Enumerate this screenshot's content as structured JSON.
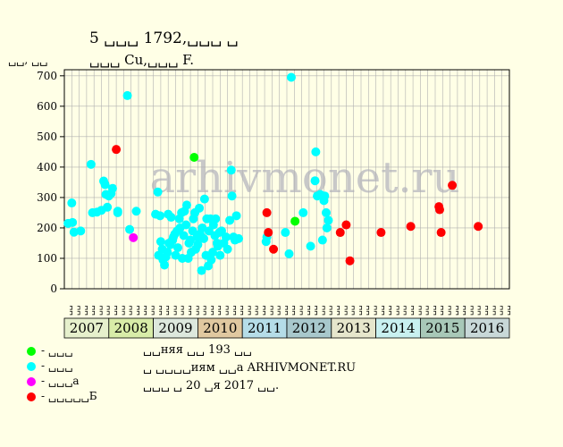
{
  "header": {
    "line1": "5 ␣␣␣ 1792,␣␣␣ ␣",
    "line2": "␣␣␣ Cu,␣␣␣ F."
  },
  "notes": [
    "␣␣няя ␣␣ 193 ␣␣",
    "␣ ␣␣␣␣иям ␣␣а ARHIVMONET.RU",
    "␣␣␣ ␣ 20 ␣я 2017 ␣␣."
  ],
  "watermark": "arhivmonet.ru",
  "chart_data": {
    "type": "scatter",
    "ylabel": "␣␣, ␣␣",
    "ylim": [
      0,
      720
    ],
    "yticks": [
      0,
      100,
      200,
      300,
      400,
      500,
      600,
      700
    ],
    "grid": true,
    "years": [
      {
        "label": "2007",
        "color": "#e6f0cc"
      },
      {
        "label": "2008",
        "color": "#d8eca8"
      },
      {
        "label": "2009",
        "color": "#dde8dd"
      },
      {
        "label": "2010",
        "color": "#e0c8a0"
      },
      {
        "label": "2011",
        "color": "#b5dde8"
      },
      {
        "label": "2012",
        "color": "#a8c8cc"
      },
      {
        "label": "2013",
        "color": "#e6e6cc"
      },
      {
        "label": "2014",
        "color": "#c8f0f0"
      },
      {
        "label": "2015",
        "color": "#a8c8b8"
      },
      {
        "label": "2016",
        "color": "#c8d8d8"
      }
    ],
    "months": [
      "␣␣",
      "␣␣",
      "␣␣",
      "␣␣",
      "␣␣",
      "␣␣",
      "␣␣",
      "␣␣",
      "␣␣",
      "␣␣",
      "␣␣",
      "␣␣",
      "␣␣",
      "␣␣",
      "␣␣",
      "␣␣",
      "␣␣",
      "␣␣",
      "␣␣",
      "␣␣",
      "␣␣",
      "␣␣",
      "␣␣",
      "␣␣",
      "␣␣",
      "␣␣",
      "␣␣",
      "␣␣",
      "␣␣",
      "␣␣",
      "␣␣",
      "␣␣",
      "␣␣",
      "␣␣",
      "␣␣",
      "␣␣",
      "␣␣",
      "␣␣",
      "␣␣",
      "␣␣",
      "␣␣",
      "␣␣",
      "␣␣",
      "␣␣",
      "␣␣",
      "␣␣",
      "␣␣",
      "␣␣",
      "␣␣",
      "␣␣",
      "␣␣",
      "␣␣",
      "␣␣",
      "␣␣",
      "␣␣",
      "␣␣",
      "␣␣",
      "␣␣",
      "␣␣",
      "␣␣"
    ],
    "xlim": [
      0,
      60
    ],
    "legend": [
      {
        "label": "- ␣␣␣",
        "color": "#00ff00"
      },
      {
        "label": "- ␣␣␣",
        "color": "#00ffff"
      },
      {
        "label": "- ␣␣␣а",
        "color": "#ff00ff"
      },
      {
        "label": "- ␣␣␣␣␣Б",
        "color": "#ff0000"
      }
    ],
    "series": [
      {
        "color": "#00ffff",
        "points": [
          [
            0.5,
            215
          ],
          [
            1.0,
            282
          ],
          [
            1.1,
            218
          ],
          [
            1.3,
            186
          ],
          [
            2.2,
            190
          ],
          [
            3.6,
            409
          ],
          [
            3.8,
            250
          ],
          [
            4.4,
            252
          ],
          [
            5.0,
            258
          ],
          [
            5.3,
            354
          ],
          [
            5.5,
            342
          ],
          [
            5.6,
            310
          ],
          [
            5.8,
            268
          ],
          [
            6.0,
            305
          ],
          [
            6.3,
            313
          ],
          [
            6.5,
            330
          ],
          [
            7.2,
            250
          ],
          [
            7.2,
            255
          ],
          [
            8.5,
            635
          ],
          [
            8.8,
            195
          ],
          [
            9.7,
            255
          ],
          [
            12.3,
            245
          ],
          [
            12.6,
            318
          ],
          [
            12.7,
            110
          ],
          [
            12.9,
            240
          ],
          [
            13.0,
            155
          ],
          [
            13.2,
            130
          ],
          [
            13.3,
            95
          ],
          [
            13.5,
            78
          ],
          [
            13.7,
            105
          ],
          [
            13.9,
            120
          ],
          [
            14.0,
            245
          ],
          [
            14.1,
            150
          ],
          [
            14.3,
            145
          ],
          [
            14.4,
            235
          ],
          [
            14.6,
            160
          ],
          [
            14.7,
            170
          ],
          [
            14.9,
            180
          ],
          [
            15.0,
            110
          ],
          [
            15.2,
            190
          ],
          [
            15.3,
            135
          ],
          [
            15.5,
            230
          ],
          [
            15.6,
            200
          ],
          [
            15.8,
            250
          ],
          [
            15.9,
            100
          ],
          [
            16.1,
            175
          ],
          [
            16.2,
            255
          ],
          [
            16.4,
            210
          ],
          [
            16.5,
            275
          ],
          [
            16.7,
            100
          ],
          [
            16.8,
            150
          ],
          [
            17.0,
            160
          ],
          [
            17.1,
            120
          ],
          [
            17.3,
            190
          ],
          [
            17.4,
            230
          ],
          [
            17.6,
            250
          ],
          [
            17.7,
            130
          ],
          [
            17.9,
            170
          ],
          [
            18.0,
            145
          ],
          [
            18.2,
            265
          ],
          [
            18.3,
            180
          ],
          [
            18.5,
            60
          ],
          [
            18.6,
            200
          ],
          [
            18.8,
            165
          ],
          [
            18.9,
            295
          ],
          [
            19.1,
            110
          ],
          [
            19.2,
            230
          ],
          [
            19.4,
            75
          ],
          [
            19.5,
            190
          ],
          [
            19.7,
            230
          ],
          [
            19.8,
            95
          ],
          [
            20.0,
            120
          ],
          [
            20.1,
            210
          ],
          [
            20.3,
            175
          ],
          [
            20.4,
            230
          ],
          [
            20.6,
            150
          ],
          [
            20.7,
            140
          ],
          [
            20.9,
            185
          ],
          [
            21.0,
            110
          ],
          [
            21.2,
            190
          ],
          [
            21.5,
            150
          ],
          [
            21.8,
            170
          ],
          [
            22.0,
            130
          ],
          [
            22.3,
            225
          ],
          [
            22.5,
            390
          ],
          [
            22.6,
            305
          ],
          [
            22.8,
            170
          ],
          [
            23.0,
            160
          ],
          [
            23.2,
            240
          ],
          [
            23.5,
            165
          ],
          [
            27.2,
            155
          ],
          [
            27.3,
            170
          ],
          [
            29.8,
            185
          ],
          [
            30.3,
            115
          ],
          [
            30.6,
            695
          ],
          [
            32.2,
            250
          ],
          [
            33.2,
            140
          ],
          [
            33.8,
            355
          ],
          [
            33.9,
            450
          ],
          [
            34.1,
            305
          ],
          [
            34.5,
            310
          ],
          [
            34.8,
            160
          ],
          [
            35.0,
            290
          ],
          [
            35.1,
            305
          ],
          [
            35.3,
            250
          ],
          [
            35.4,
            200
          ],
          [
            35.6,
            225
          ]
        ]
      },
      {
        "color": "#ff0000",
        "points": [
          [
            7.0,
            458
          ],
          [
            27.3,
            250
          ],
          [
            27.5,
            185
          ],
          [
            28.2,
            130
          ],
          [
            37.2,
            185
          ],
          [
            38.0,
            210
          ],
          [
            38.5,
            92
          ],
          [
            42.7,
            185
          ],
          [
            46.7,
            205
          ],
          [
            50.5,
            270
          ],
          [
            50.6,
            260
          ],
          [
            50.8,
            185
          ],
          [
            52.3,
            340
          ],
          [
            55.8,
            205
          ]
        ]
      },
      {
        "color": "#ff00ff",
        "points": [
          [
            9.3,
            168
          ]
        ]
      },
      {
        "color": "#00ff00",
        "points": [
          [
            17.5,
            432
          ],
          [
            31.1,
            222
          ]
        ]
      }
    ]
  }
}
